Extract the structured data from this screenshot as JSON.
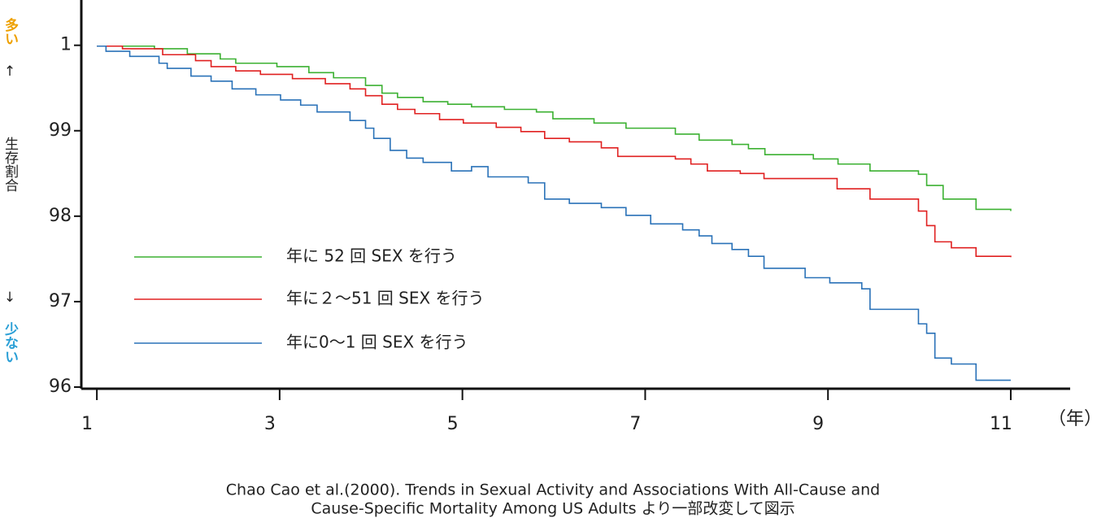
{
  "chart_data": {
    "type": "step",
    "y_label": "生存割合",
    "y_top_label": "多い",
    "y_top_arrow": "↑",
    "y_bottom_arrow": "↓",
    "y_bottom_label": "少ない",
    "x_unit": "（年）",
    "caption": [
      "Chao Cao et al.(2000). Trends in Sexual Activity and Associations With All-Cause and",
      "Cause-Specific Mortality Among US Adults より一部改変して図示"
    ],
    "xlim": [
      0.83,
      11.65
    ],
    "xticks": [
      1,
      3,
      5,
      7,
      9,
      11
    ],
    "ylim": [
      96,
      100.53
    ],
    "yticks": [
      {
        "value": 100,
        "label": "1"
      },
      99,
      98,
      97,
      96
    ],
    "series": [
      {
        "name": "年に 52 回 SEX を行う",
        "color": "#3cb132",
        "x": [
          1.0,
          1.63,
          1.99,
          2.35,
          2.52,
          2.97,
          3.32,
          3.59,
          3.94,
          4.12,
          4.29,
          4.57,
          4.84,
          5.1,
          5.46,
          5.81,
          5.99,
          6.44,
          6.79,
          7.33,
          7.59,
          7.95,
          8.13,
          8.31,
          8.84,
          9.11,
          9.46,
          9.99,
          10.08,
          10.26,
          10.62,
          11.0
        ],
        "values": [
          99.99,
          99.96,
          99.9,
          99.84,
          99.79,
          99.75,
          99.68,
          99.62,
          99.53,
          99.44,
          99.39,
          99.34,
          99.31,
          99.28,
          99.25,
          99.22,
          99.14,
          99.09,
          99.03,
          98.96,
          98.89,
          98.84,
          98.79,
          98.72,
          98.67,
          98.61,
          98.53,
          98.49,
          98.36,
          98.2,
          98.08,
          98.06
        ]
      },
      {
        "name": "年に２～51 回 SEX を行う",
        "color": "#e02020",
        "x": [
          1.0,
          1.28,
          1.72,
          2.08,
          2.25,
          2.52,
          2.79,
          3.14,
          3.5,
          3.77,
          3.94,
          4.12,
          4.29,
          4.48,
          4.75,
          5.01,
          5.37,
          5.64,
          5.9,
          6.17,
          6.52,
          6.7,
          7.33,
          7.5,
          7.68,
          8.04,
          8.3,
          9.1,
          9.46,
          9.99,
          10.08,
          10.17,
          10.35,
          10.62,
          11.0
        ],
        "values": [
          99.99,
          99.96,
          99.89,
          99.82,
          99.75,
          99.7,
          99.66,
          99.61,
          99.55,
          99.49,
          99.41,
          99.31,
          99.25,
          99.2,
          99.13,
          99.09,
          99.04,
          98.99,
          98.91,
          98.87,
          98.8,
          98.7,
          98.67,
          98.61,
          98.53,
          98.5,
          98.44,
          98.32,
          98.2,
          98.06,
          97.89,
          97.7,
          97.63,
          97.53,
          97.52
        ]
      },
      {
        "name": "年に0～1 回 SEX を行う",
        "color": "#2a72b8",
        "x": [
          1.0,
          1.1,
          1.36,
          1.68,
          1.77,
          2.03,
          2.25,
          2.48,
          2.74,
          3.01,
          3.23,
          3.41,
          3.77,
          3.94,
          4.03,
          4.21,
          4.39,
          4.57,
          4.88,
          5.1,
          5.28,
          5.72,
          5.9,
          6.17,
          6.52,
          6.79,
          7.06,
          7.41,
          7.59,
          7.73,
          7.95,
          8.13,
          8.3,
          8.75,
          9.02,
          9.37,
          9.46,
          9.99,
          10.08,
          10.17,
          10.35,
          10.62,
          11.0
        ],
        "values": [
          99.99,
          99.93,
          99.87,
          99.79,
          99.73,
          99.64,
          99.58,
          99.49,
          99.42,
          99.36,
          99.3,
          99.22,
          99.12,
          99.03,
          98.91,
          98.77,
          98.68,
          98.63,
          98.53,
          98.58,
          98.46,
          98.39,
          98.2,
          98.15,
          98.1,
          98.01,
          97.91,
          97.84,
          97.77,
          97.68,
          97.61,
          97.53,
          97.39,
          97.28,
          97.22,
          97.15,
          96.91,
          96.74,
          96.63,
          96.34,
          96.27,
          96.08,
          96.08
        ]
      }
    ]
  }
}
